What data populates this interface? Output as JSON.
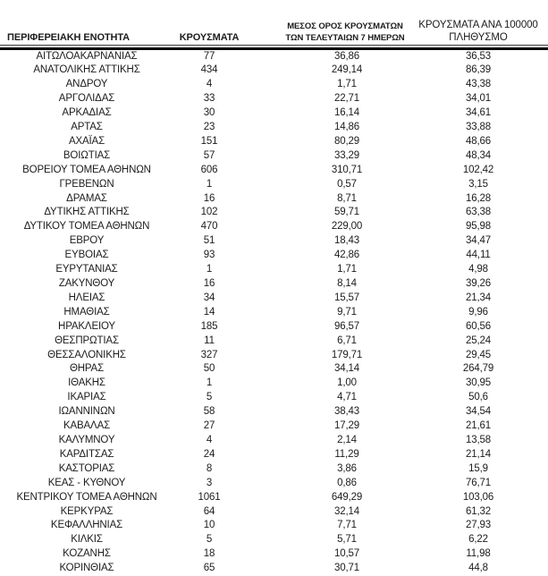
{
  "colors": {
    "background": "#ffffff",
    "text": "#1c1c1c",
    "header_underline": "#3a3a3a",
    "thick_rule": "#000000"
  },
  "table": {
    "headers": {
      "col1": "ΠΕΡΙΦΕΡΕΙΑΚΗ ΕΝΟΤΗΤΑ",
      "col2": "ΚΡΟΥΣΜΑΤΑ",
      "col3_line1": "ΜΕΣΟΣ ΟΡΟΣ ΚΡΟΥΣΜΑΤΩΝ",
      "col3_line2": "ΤΩΝ ΤΕΛΕΥΤΑΙΩΝ 7 ΗΜΕΡΩΝ",
      "col4_line1": "ΚΡΟΥΣΜΑΤΑ ΑΝΑ 100000",
      "col4_line2": "ΠΛΗΘΥΣΜΟ"
    },
    "rows": [
      [
        "ΑΙΤΩΛΟΑΚΑΡΝΑΝΙΑΣ",
        "77",
        "36,86",
        "36,53"
      ],
      [
        "ΑΝΑΤΟΛΙΚΗΣ ΑΤΤΙΚΗΣ",
        "434",
        "249,14",
        "86,39"
      ],
      [
        "ΑΝΔΡΟΥ",
        "4",
        "1,71",
        "43,38"
      ],
      [
        "ΑΡΓΟΛΙΔΑΣ",
        "33",
        "22,71",
        "34,01"
      ],
      [
        "ΑΡΚΑΔΙΑΣ",
        "30",
        "16,14",
        "34,61"
      ],
      [
        "ΑΡΤΑΣ",
        "23",
        "14,86",
        "33,88"
      ],
      [
        "ΑΧΑΪΑΣ",
        "151",
        "80,29",
        "48,66"
      ],
      [
        "ΒΟΙΩΤΙΑΣ",
        "57",
        "33,29",
        "48,34"
      ],
      [
        "ΒΟΡΕΙΟΥ ΤΟΜΕΑ ΑΘΗΝΩΝ",
        "606",
        "310,71",
        "102,42"
      ],
      [
        "ΓΡΕΒΕΝΩΝ",
        "1",
        "0,57",
        "3,15"
      ],
      [
        "ΔΡΑΜΑΣ",
        "16",
        "8,71",
        "16,28"
      ],
      [
        "ΔΥΤΙΚΗΣ ΑΤΤΙΚΗΣ",
        "102",
        "59,71",
        "63,38"
      ],
      [
        "ΔΥΤΙΚΟΥ ΤΟΜΕΑ ΑΘΗΝΩΝ",
        "470",
        "229,00",
        "95,98"
      ],
      [
        "ΕΒΡΟΥ",
        "51",
        "18,43",
        "34,47"
      ],
      [
        "ΕΥΒΟΙΑΣ",
        "93",
        "42,86",
        "44,11"
      ],
      [
        "ΕΥΡΥΤΑΝΙΑΣ",
        "1",
        "1,71",
        "4,98"
      ],
      [
        "ΖΑΚΥΝΘΟΥ",
        "16",
        "8,14",
        "39,26"
      ],
      [
        "ΗΛΕΙΑΣ",
        "34",
        "15,57",
        "21,34"
      ],
      [
        "ΗΜΑΘΙΑΣ",
        "14",
        "9,71",
        "9,96"
      ],
      [
        "ΗΡΑΚΛΕΙΟΥ",
        "185",
        "96,57",
        "60,56"
      ],
      [
        "ΘΕΣΠΡΩΤΙΑΣ",
        "11",
        "6,71",
        "25,24"
      ],
      [
        "ΘΕΣΣΑΛΟΝΙΚΗΣ",
        "327",
        "179,71",
        "29,45"
      ],
      [
        "ΘΗΡΑΣ",
        "50",
        "34,14",
        "264,79"
      ],
      [
        "ΙΘΑΚΗΣ",
        "1",
        "1,00",
        "30,95"
      ],
      [
        "ΙΚΑΡΙΑΣ",
        "5",
        "4,71",
        "50,6"
      ],
      [
        "ΙΩΑΝΝΙΝΩΝ",
        "58",
        "38,43",
        "34,54"
      ],
      [
        "ΚΑΒΑΛΑΣ",
        "27",
        "17,29",
        "21,61"
      ],
      [
        "ΚΑΛΥΜΝΟΥ",
        "4",
        "2,14",
        "13,58"
      ],
      [
        "ΚΑΡΔΙΤΣΑΣ",
        "24",
        "11,29",
        "21,14"
      ],
      [
        "ΚΑΣΤΟΡΙΑΣ",
        "8",
        "3,86",
        "15,9"
      ],
      [
        "ΚΕΑΣ - ΚΥΘΝΟΥ",
        "3",
        "0,86",
        "76,71"
      ],
      [
        "ΚΕΝΤΡΙΚΟΥ ΤΟΜΕΑ ΑΘΗΝΩΝ",
        "1061",
        "649,29",
        "103,06"
      ],
      [
        "ΚΕΡΚΥΡΑΣ",
        "64",
        "32,14",
        "61,32"
      ],
      [
        "ΚΕΦΑΛΛΗΝΙΑΣ",
        "10",
        "7,71",
        "27,93"
      ],
      [
        "ΚΙΛΚΙΣ",
        "5",
        "5,71",
        "6,22"
      ],
      [
        "ΚΟΖΑΝΗΣ",
        "18",
        "10,57",
        "11,98"
      ],
      [
        "ΚΟΡΙΝΘΙΑΣ",
        "65",
        "30,71",
        "44,8"
      ]
    ]
  }
}
